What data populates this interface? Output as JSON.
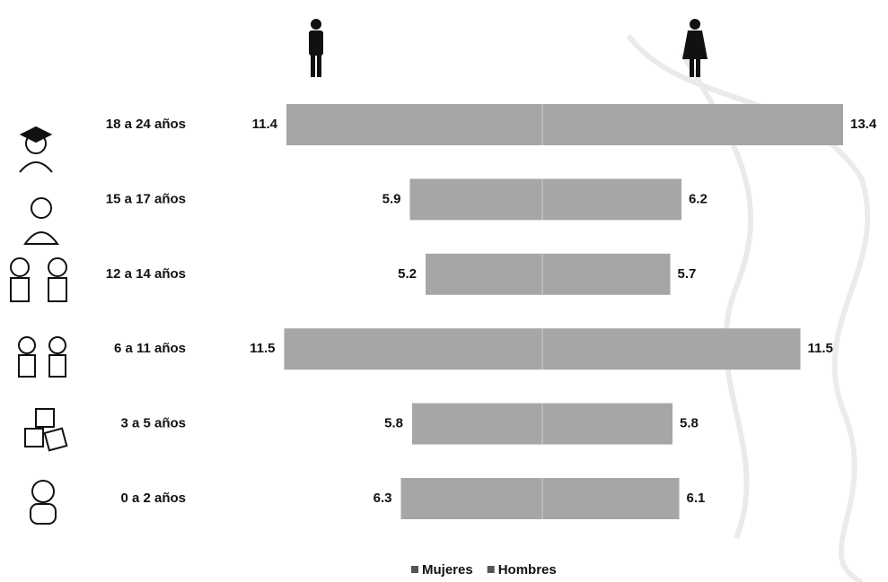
{
  "chart_data": {
    "type": "bar",
    "categories": [
      "18 a 24 años",
      "15 a 17 años",
      "12 a 14 años",
      "6 a 11 años",
      "3 a 5 años",
      "0 a 2 años"
    ],
    "series": [
      {
        "name": "Mujeres",
        "color": "#a6a6a6",
        "values": [
          13.4,
          6.2,
          5.7,
          11.5,
          5.8,
          6.1
        ]
      },
      {
        "name": "Hombres",
        "color": "#a6a6a6",
        "values": [
          11.4,
          5.9,
          5.2,
          11.5,
          5.8,
          6.3
        ]
      }
    ]
  }
}
